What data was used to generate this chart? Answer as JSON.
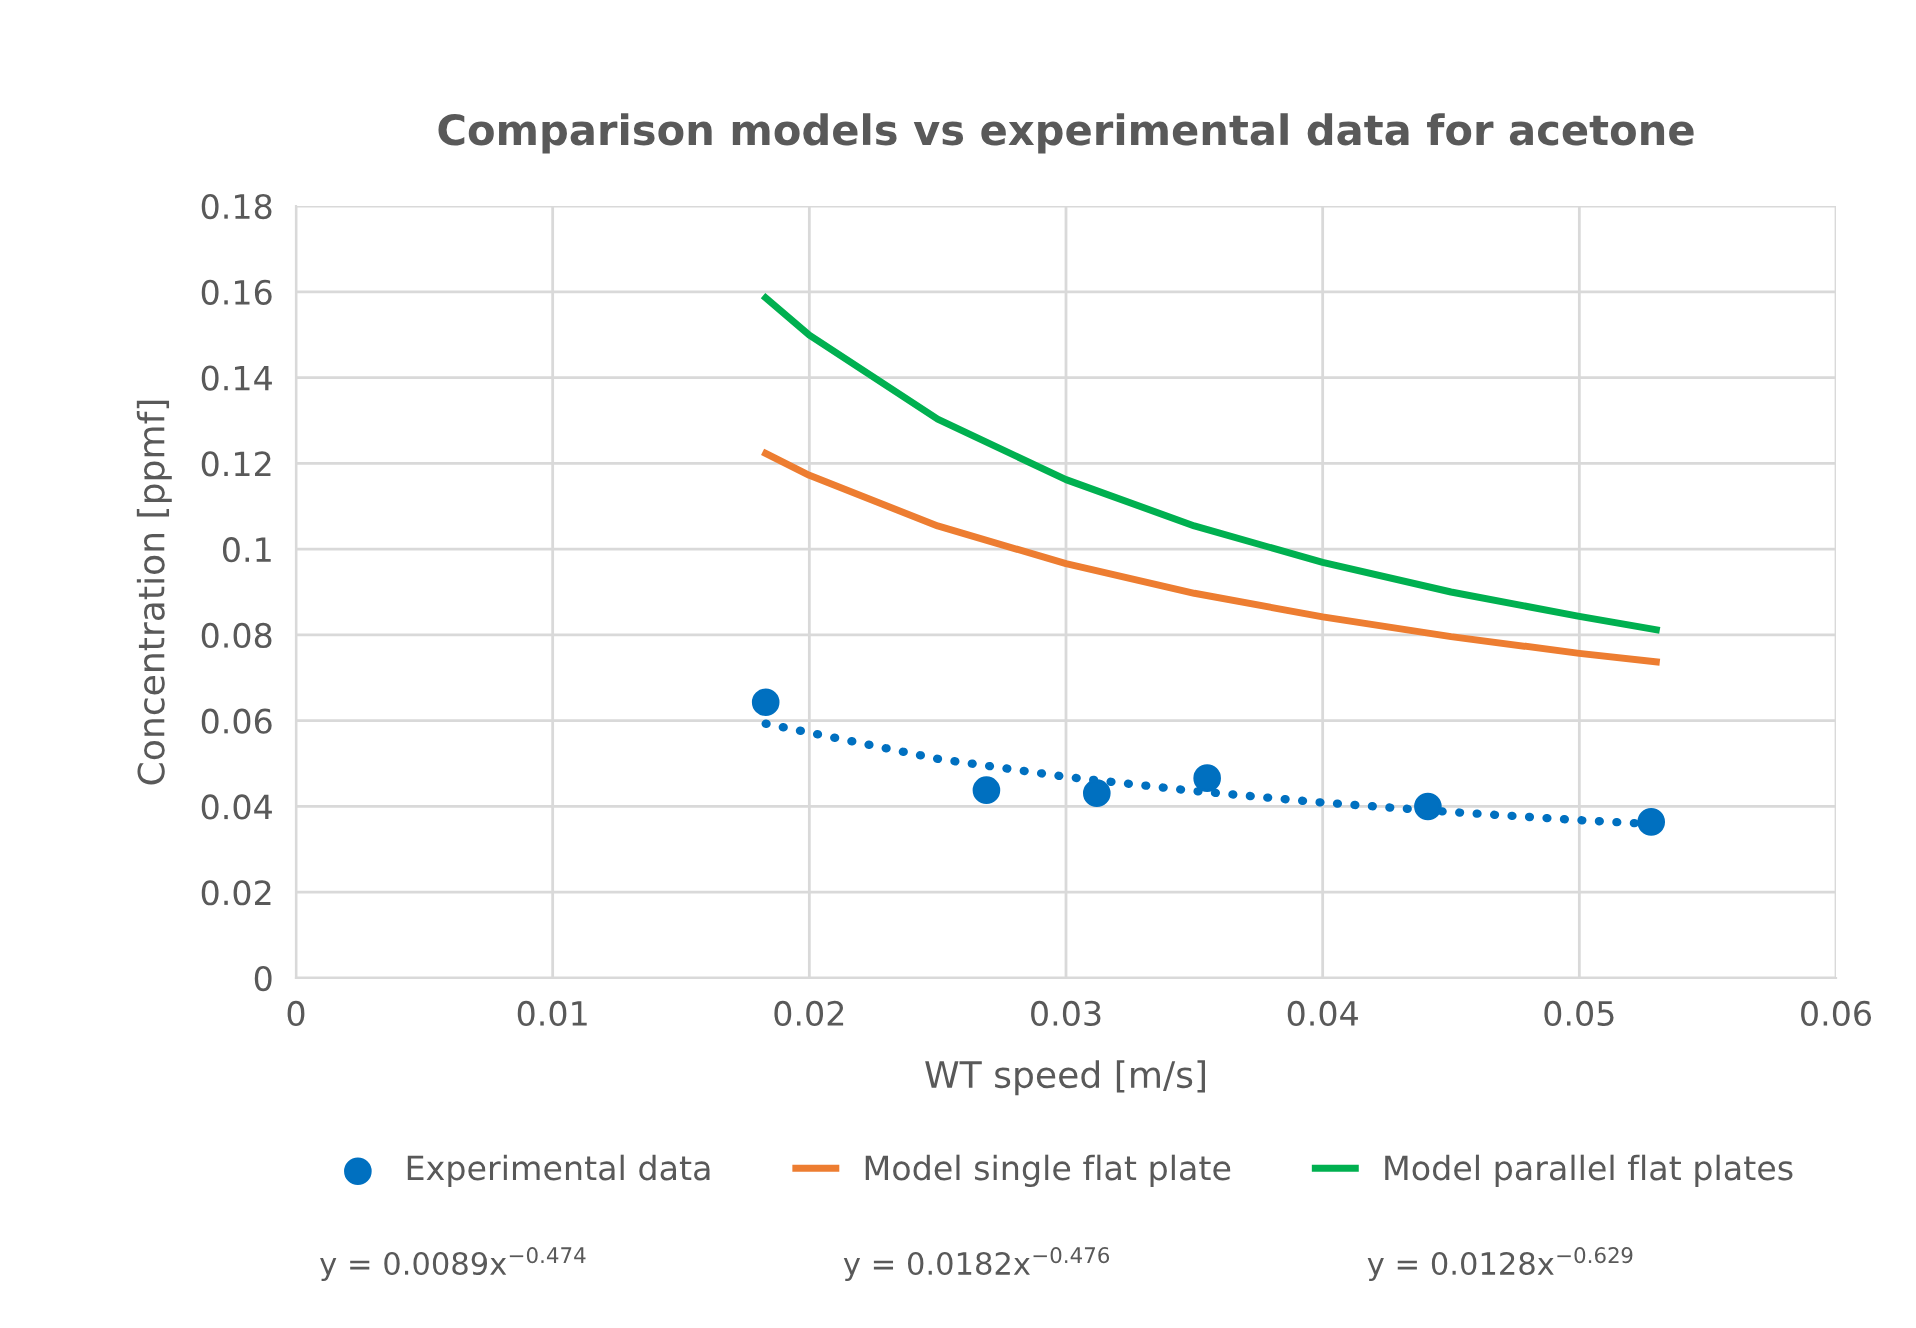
{
  "chart_data": {
    "type": "scatter",
    "title": "Comparison models vs experimental data for acetone",
    "xlabel": "WT speed [m/s]",
    "ylabel": "Concentration [ppmf]",
    "xlim": [
      0,
      0.06
    ],
    "xticks": [
      0,
      0.01,
      0.02,
      0.03,
      0.04,
      0.05,
      0.06
    ],
    "ylim": [
      0,
      0.18
    ],
    "yticks": [
      0,
      0.02,
      0.04,
      0.06,
      0.08,
      0.1,
      0.12,
      0.14,
      0.16,
      0.18
    ],
    "grid": true,
    "legend": "bottom",
    "series": [
      {
        "name": "Experimental data",
        "marker": "circle",
        "color": "#0070c0",
        "x": [
          0.0183,
          0.0269,
          0.0312,
          0.0355,
          0.0441,
          0.0528
        ],
        "values": [
          0.0643,
          0.0438,
          0.0431,
          0.0466,
          0.04,
          0.0364
        ]
      },
      {
        "name": "Model single flat plate",
        "type": "line",
        "marker": "none",
        "line_style": "solid",
        "color": "#ed7d31",
        "x": [
          0.0183,
          0.02,
          0.025,
          0.03,
          0.035,
          0.04,
          0.045,
          0.05,
          0.053
        ],
        "values": [
          0.1223,
          0.1172,
          0.1054,
          0.0966,
          0.0897,
          0.0842,
          0.0796,
          0.0757,
          0.0737
        ]
      },
      {
        "name": "Model parallel flat plates",
        "type": "line",
        "marker": "none",
        "line_style": "solid",
        "color": "#00b050",
        "x": [
          0.0183,
          0.02,
          0.025,
          0.03,
          0.035,
          0.04,
          0.045,
          0.05,
          0.053
        ],
        "values": [
          0.1586,
          0.1499,
          0.1303,
          0.1162,
          0.1054,
          0.0969,
          0.09,
          0.0843,
          0.0812
        ]
      },
      {
        "type": "line",
        "marker": "none",
        "line_style": "dotted",
        "color": "#0070c0",
        "x": [
          0.0183,
          0.025,
          0.03,
          0.035,
          0.04,
          0.045,
          0.05,
          0.0528
        ],
        "values": [
          0.0593,
          0.0511,
          0.0469,
          0.0436,
          0.0409,
          0.0387,
          0.0368,
          0.0359
        ]
      }
    ],
    "annotations": [
      "y = 0.0089x$^{−0.474}$",
      "y = 0.0182x$^{−0.476}$",
      "y = 0.0128x$^{−0.629}$"
    ]
  }
}
